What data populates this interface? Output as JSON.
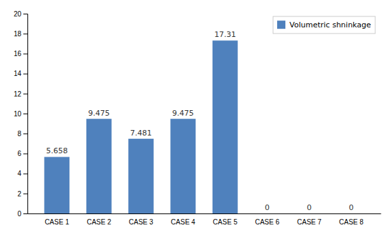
{
  "chart_data": {
    "type": "bar",
    "categories": [
      "CASE 1",
      "CASE 2",
      "CASE 3",
      "CASE 4",
      "CASE 5",
      "CASE 6",
      "CASE 7",
      "CASE 8"
    ],
    "series": [
      {
        "name": "Volumetric shninkage",
        "color": "#4F81BD",
        "values": [
          5.658,
          9.475,
          7.481,
          9.475,
          17.31,
          0,
          0,
          0
        ]
      }
    ],
    "ylim": [
      0,
      20
    ],
    "yticks": [
      0,
      2,
      4,
      6,
      8,
      10,
      12,
      14,
      16,
      18,
      20
    ],
    "grid": false,
    "legend": "upper-right",
    "data_labels": true
  }
}
